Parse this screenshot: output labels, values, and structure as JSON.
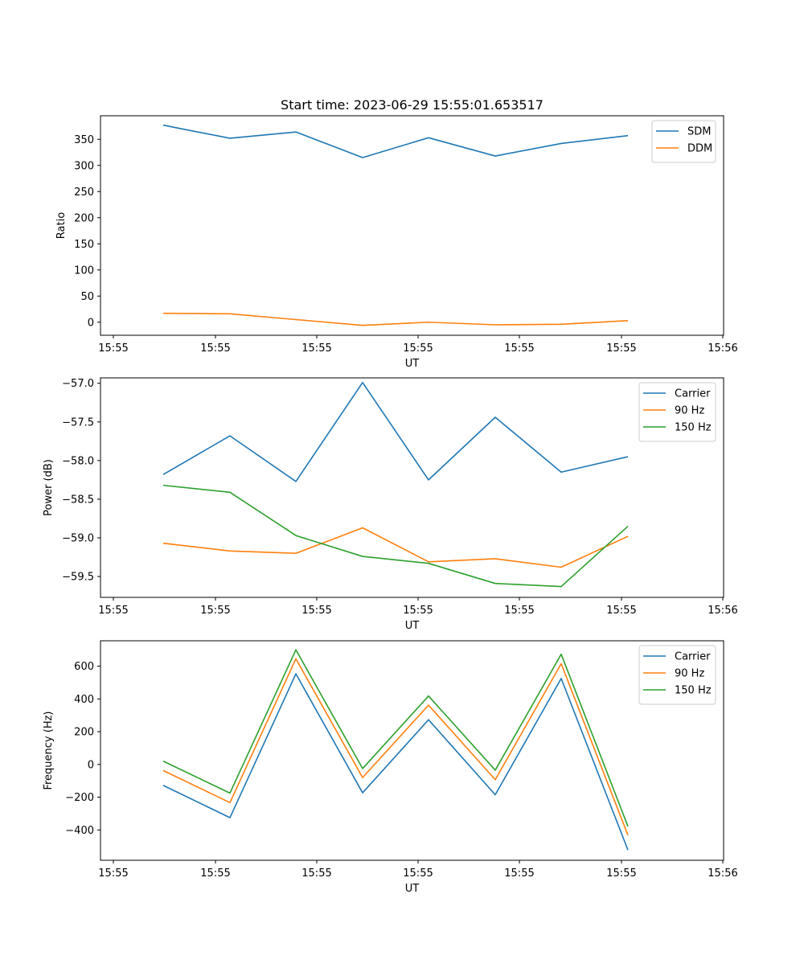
{
  "figure": {
    "title": "Start time: 2023-06-29 15:55:01.653517"
  },
  "colors": {
    "blue": "#1f77b4",
    "orange": "#ff7f0e",
    "green": "#2ca02c"
  },
  "chart_data": [
    {
      "type": "line",
      "title": "Start time: 2023-06-29 15:55:01.653517",
      "xlabel": "UT",
      "ylabel": "Ratio",
      "x_tick_labels": [
        "15:55",
        "15:55",
        "15:55",
        "15:55",
        "15:55",
        "15:55",
        "15:56"
      ],
      "y_ticks": [
        0,
        50,
        100,
        150,
        200,
        250,
        300,
        350
      ],
      "ylim": [
        -25,
        395
      ],
      "legend_position": "top-right",
      "series": [
        {
          "name": "SDM",
          "color": "#1f77b4",
          "values": [
            377,
            352,
            364,
            315,
            353,
            318,
            342,
            357
          ]
        },
        {
          "name": "DDM",
          "color": "#ff7f0e",
          "values": [
            17,
            16,
            5,
            -6,
            0,
            -5,
            -4,
            3
          ]
        }
      ]
    },
    {
      "type": "line",
      "xlabel": "UT",
      "ylabel": "Power (dB)",
      "x_tick_labels": [
        "15:55",
        "15:55",
        "15:55",
        "15:55",
        "15:55",
        "15:55",
        "15:56"
      ],
      "y_ticks": [
        -57.0,
        -57.5,
        -58.0,
        -58.5,
        -59.0,
        -59.5
      ],
      "y_tick_labels": [
        "−57.0",
        "−57.5",
        "−58.0",
        "−58.5",
        "−59.0",
        "−59.5"
      ],
      "ylim": [
        -59.77,
        -56.93
      ],
      "legend_position": "top-right",
      "series": [
        {
          "name": "Carrier",
          "color": "#1f77b4",
          "values": [
            -58.18,
            -57.68,
            -58.27,
            -56.99,
            -58.25,
            -57.44,
            -58.15,
            -57.95
          ]
        },
        {
          "name": "90 Hz",
          "color": "#ff7f0e",
          "values": [
            -59.07,
            -59.17,
            -59.2,
            -58.87,
            -59.31,
            -59.27,
            -59.38,
            -58.98
          ]
        },
        {
          "name": "150 Hz",
          "color": "#2ca02c",
          "values": [
            -58.32,
            -58.41,
            -58.97,
            -59.24,
            -59.33,
            -59.59,
            -59.63,
            -58.85
          ]
        }
      ]
    },
    {
      "type": "line",
      "xlabel": "UT",
      "ylabel": "Frequency (Hz)",
      "x_tick_labels": [
        "15:55",
        "15:55",
        "15:55",
        "15:55",
        "15:55",
        "15:55",
        "15:56"
      ],
      "y_ticks": [
        -400,
        -200,
        0,
        200,
        400,
        600
      ],
      "y_tick_labels": [
        "−400",
        "−200",
        "0",
        "200",
        "400",
        "600"
      ],
      "ylim": [
        -585,
        755
      ],
      "legend_position": "top-right",
      "series": [
        {
          "name": "Carrier",
          "color": "#1f77b4",
          "values": [
            -128,
            -325,
            553,
            -173,
            273,
            -185,
            525,
            -522
          ]
        },
        {
          "name": "90 Hz",
          "color": "#ff7f0e",
          "values": [
            -37,
            -233,
            645,
            -80,
            362,
            -93,
            615,
            -432
          ]
        },
        {
          "name": "150 Hz",
          "color": "#2ca02c",
          "values": [
            20,
            -175,
            700,
            -25,
            418,
            -35,
            673,
            -378
          ]
        }
      ]
    }
  ]
}
